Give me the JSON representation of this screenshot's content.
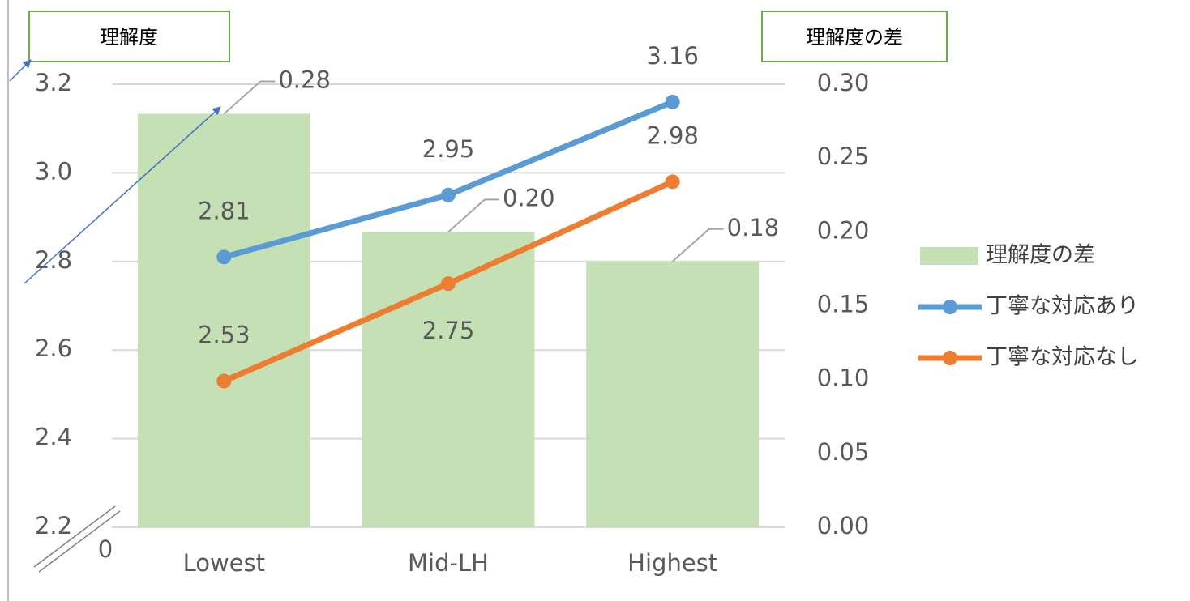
{
  "chart_data": {
    "type": "bar_line",
    "categories": [
      "Lowest",
      "Mid-LH",
      "Highest"
    ],
    "series": [
      {
        "name": "理解度の差",
        "type": "bar",
        "axis": "y2",
        "color": "#c5e0b4",
        "values": [
          0.28,
          0.2,
          0.18
        ],
        "value_labels": [
          "0.28",
          "0.20",
          "0.18"
        ]
      },
      {
        "name": "丁寧な対応あり",
        "type": "line",
        "axis": "y",
        "color": "#5b9bd5",
        "values": [
          2.81,
          2.95,
          3.16
        ]
      },
      {
        "name": "丁寧な対応なし",
        "type": "line",
        "axis": "y",
        "color": "#ed7d31",
        "values": [
          2.53,
          2.75,
          2.98
        ]
      }
    ],
    "ylim": [
      2.2,
      3.2
    ],
    "yticks": [
      2.2,
      2.4,
      2.6,
      2.8,
      {
        "value": 3,
        "label": "3.0"
      },
      3.2
    ],
    "y2lim": [
      0,
      0.3
    ],
    "y2ticks": [
      {
        "value": 0,
        "label": "0.00"
      },
      0.05,
      {
        "value": 0.1,
        "label": "0.10"
      },
      0.15,
      {
        "value": 0.2,
        "label": "0.20"
      },
      0.25,
      {
        "value": 0.3,
        "label": "0.30"
      }
    ],
    "grid": true,
    "legend": "right",
    "annotations": [
      "理解度",
      "理解度の差",
      "0"
    ]
  }
}
